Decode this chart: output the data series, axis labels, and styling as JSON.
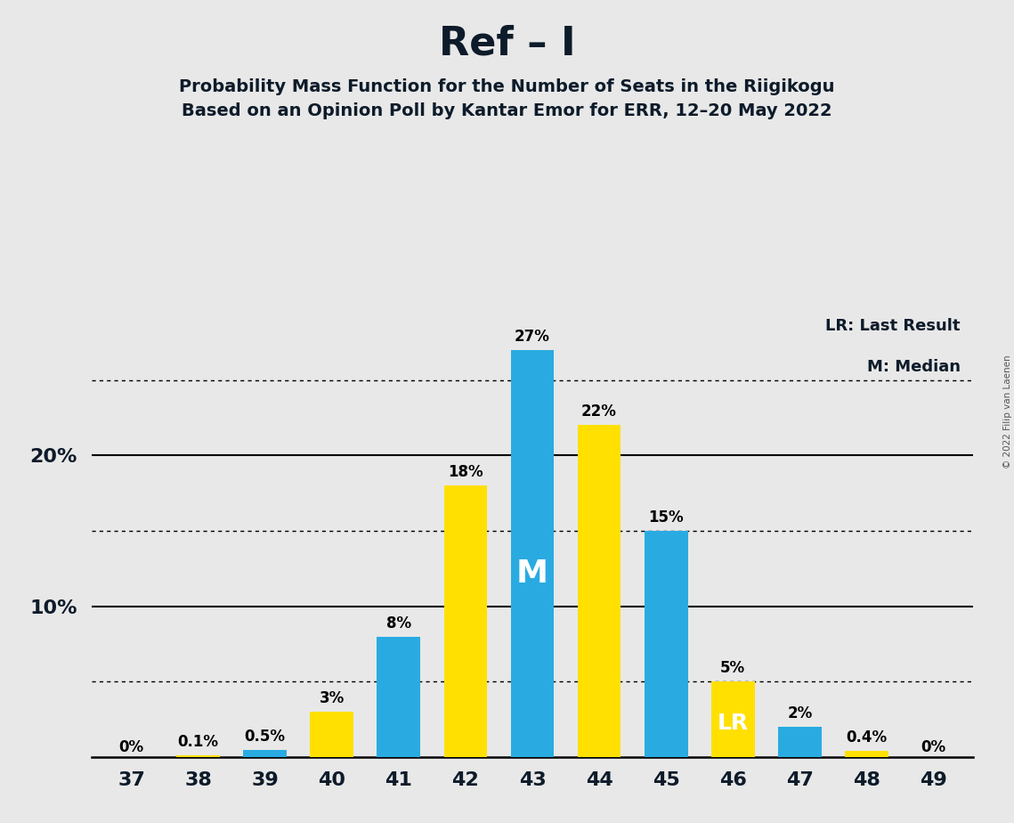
{
  "title": "Ref – I",
  "subtitle1": "Probability Mass Function for the Number of Seats in the Riigikogu",
  "subtitle2": "Based on an Opinion Poll by Kantar Emor for ERR, 12–20 May 2022",
  "copyright": "© 2022 Filip van Laenen",
  "seats": [
    37,
    38,
    39,
    40,
    41,
    42,
    43,
    44,
    45,
    46,
    47,
    48,
    49
  ],
  "values": [
    0.0,
    0.1,
    0.5,
    3.0,
    8.0,
    18.0,
    27.0,
    22.0,
    15.0,
    5.0,
    2.0,
    0.4,
    0.0
  ],
  "colors": [
    "#FFE000",
    "#FFE000",
    "#29ABE2",
    "#FFE000",
    "#29ABE2",
    "#FFE000",
    "#29ABE2",
    "#FFE000",
    "#29ABE2",
    "#FFE000",
    "#29ABE2",
    "#FFE000",
    "#FFE000"
  ],
  "bar_labels": [
    "0%",
    "0.1%",
    "0.5%",
    "3%",
    "8%",
    "18%",
    "27%",
    "22%",
    "15%",
    "5%",
    "2%",
    "0.4%",
    "0%"
  ],
  "blue_color": "#29ABE2",
  "yellow_color": "#FFE000",
  "background_color": "#E8E8E8",
  "median_seat": 43,
  "lr_seat": 46,
  "legend_lr": "LR: Last Result",
  "legend_m": "M: Median",
  "dotted_lines": [
    5.0,
    15.0,
    25.0
  ],
  "solid_lines": [
    10.0,
    20.0
  ],
  "ylim": [
    0,
    30
  ],
  "ytick_positions": [
    10,
    20
  ],
  "ytick_labels": [
    "10%",
    "20%"
  ]
}
